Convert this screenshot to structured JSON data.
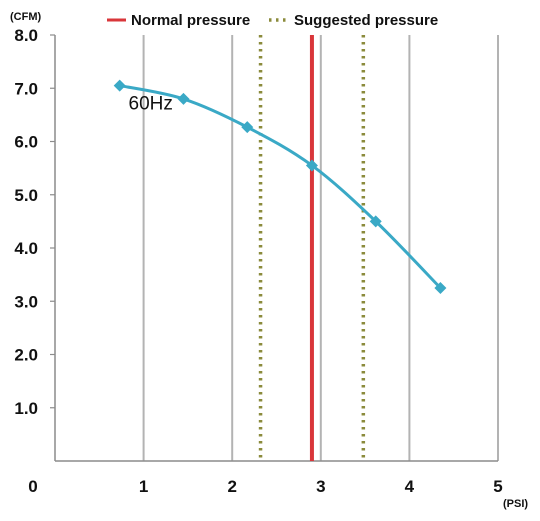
{
  "chart_data": {
    "type": "line",
    "title": "",
    "xlabel": "(PSI)",
    "ylabel": "(CFM)",
    "xlim": [
      0,
      5
    ],
    "ylim": [
      0,
      8
    ],
    "x_ticks": [
      0,
      1,
      2,
      3,
      4,
      5
    ],
    "x_tick_labels": [
      "0",
      "1",
      "2",
      "3",
      "4",
      "5"
    ],
    "y_ticks": [
      1,
      2,
      3,
      4,
      5,
      6,
      7,
      8
    ],
    "y_tick_labels": [
      "1.0",
      "2.0",
      "3.0",
      "4.0",
      "5.0",
      "6.0",
      "7.0",
      "8.0"
    ],
    "grid": {
      "vertical": true,
      "horizontal": false
    },
    "legend_position": "top",
    "series": [
      {
        "name": "",
        "color": "#3aa9c6",
        "marker": "diamond",
        "smooth": true,
        "x": [
          0.73,
          1.45,
          2.17,
          2.9,
          3.62,
          4.35
        ],
        "y": [
          7.05,
          6.8,
          6.27,
          5.55,
          4.5,
          3.25
        ]
      }
    ],
    "reference_lines": [
      {
        "name": "Normal pressure",
        "x": 2.9,
        "color": "#d9363a",
        "style": "solid"
      },
      {
        "name": "Suggested pressure",
        "x": 2.32,
        "color": "#8b8b3c",
        "style": "dotted"
      },
      {
        "name": "Suggested pressure",
        "x": 3.48,
        "color": "#8b8b3c",
        "style": "dotted"
      }
    ],
    "legend": [
      {
        "label": "Normal pressure",
        "color": "#d9363a",
        "style": "solid"
      },
      {
        "label": "Suggested pressure",
        "color": "#8b8b3c",
        "style": "dotted"
      }
    ],
    "annotations": [
      {
        "text": "60Hz",
        "x": 0.83,
        "y": 6.6
      }
    ]
  }
}
